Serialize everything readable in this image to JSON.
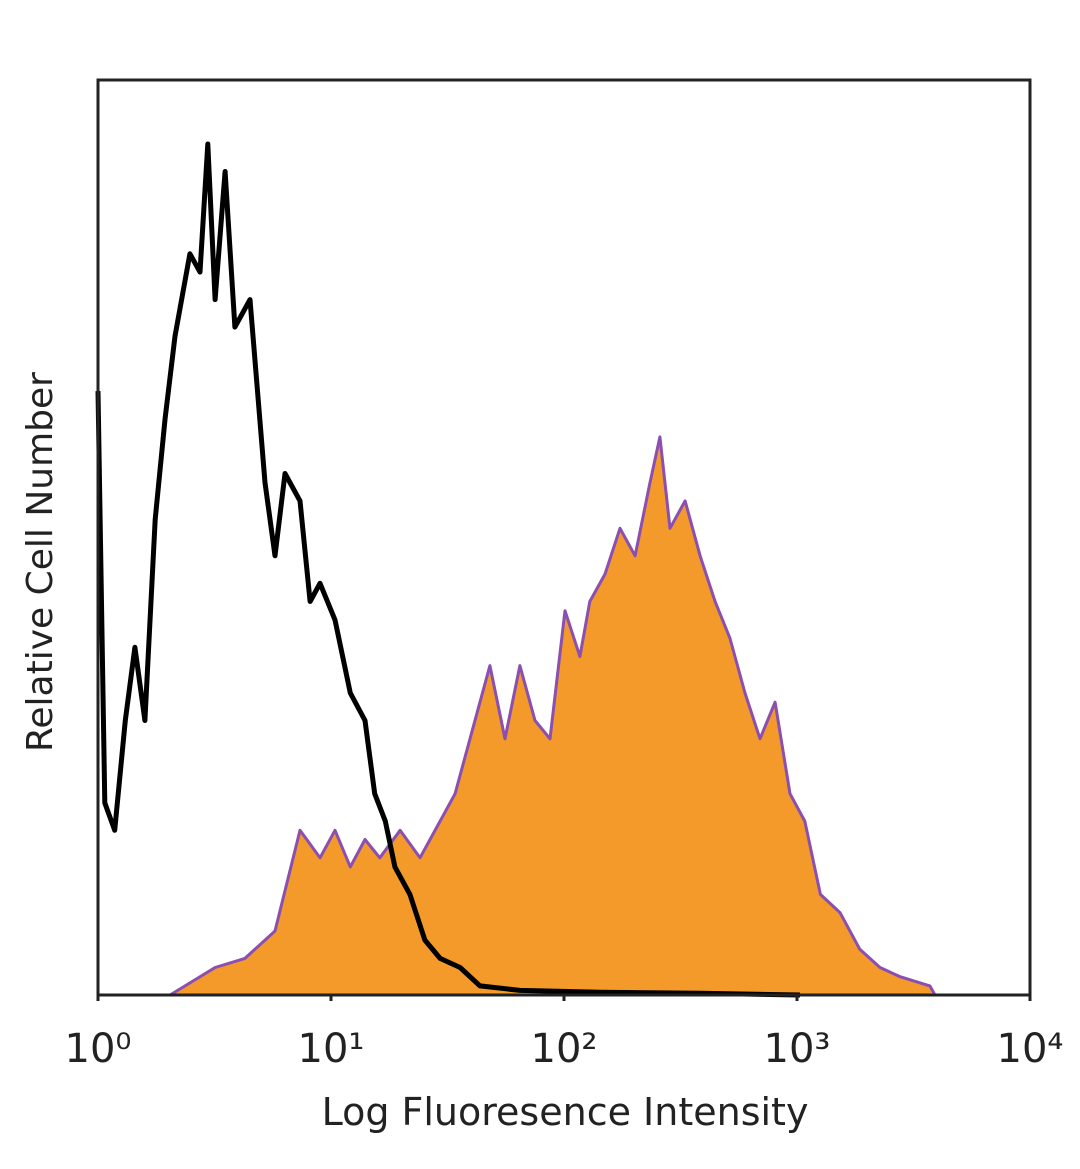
{
  "chart_data": {
    "type": "histogram-overlay",
    "x_label": "Log Fluoresence Intensity",
    "y_label": "Relative Cell Number",
    "xscale": "log",
    "xlim": [
      1,
      10000
    ],
    "xticks": [
      {
        "value": 1,
        "label": "10⁰"
      },
      {
        "value": 10,
        "label": "10¹"
      },
      {
        "value": 100,
        "label": "10²"
      },
      {
        "value": 1000,
        "label": "10³"
      },
      {
        "value": 10000,
        "label": "10⁴"
      }
    ],
    "ylim": [
      0,
      100
    ],
    "series": [
      {
        "style": "area",
        "color": "#f39a2b",
        "edge_color": "#8a4fb0",
        "x": [
          2.04,
          3.18,
          4.27,
          5.75,
          7.36,
          8.97,
          10.4,
          12.1,
          14.0,
          16.2,
          19.8,
          24.1,
          29.4,
          34.1,
          39.5,
          48.1,
          55.8,
          64.7,
          75.1,
          87.1,
          101,
          117,
          129,
          150,
          174,
          202,
          234,
          258,
          285,
          331,
          384,
          445,
          515,
          598,
          694,
          805,
          933,
          1080,
          1260,
          1530,
          1860,
          2270,
          2770,
          3720,
          3910
        ],
        "values": [
          0,
          3,
          4,
          7,
          18,
          15,
          18,
          14,
          17,
          15,
          18,
          15,
          19,
          22,
          28,
          36,
          28,
          36,
          30,
          28,
          42,
          37,
          43,
          46,
          51,
          48,
          56,
          61,
          51,
          54,
          48,
          43,
          39,
          33,
          28,
          32,
          22,
          19,
          11,
          9,
          5,
          3,
          2,
          1,
          0
        ]
      },
      {
        "style": "line",
        "color": "#000000",
        "x": [
          1,
          1.07,
          1.18,
          1.31,
          1.44,
          1.59,
          1.76,
          1.94,
          2.14,
          2.48,
          2.74,
          2.96,
          3.18,
          3.51,
          3.87,
          4.49,
          5.21,
          5.75,
          6.35,
          7.36,
          8.13,
          8.97,
          10.4,
          12.1,
          14.0,
          15.4,
          17.1,
          18.8,
          21.8,
          25.3,
          29.4,
          35.8,
          43.6,
          64.7,
          143,
          384,
          1030
        ],
        "values": [
          66,
          21,
          18,
          30,
          38,
          30,
          52,
          63,
          72,
          81,
          79,
          93,
          76,
          90,
          73,
          76,
          56,
          48,
          57,
          54,
          43,
          45,
          41,
          33,
          30,
          22,
          19,
          14,
          11,
          6,
          4,
          3,
          1,
          0.5,
          0.3,
          0.2,
          0
        ]
      }
    ]
  }
}
